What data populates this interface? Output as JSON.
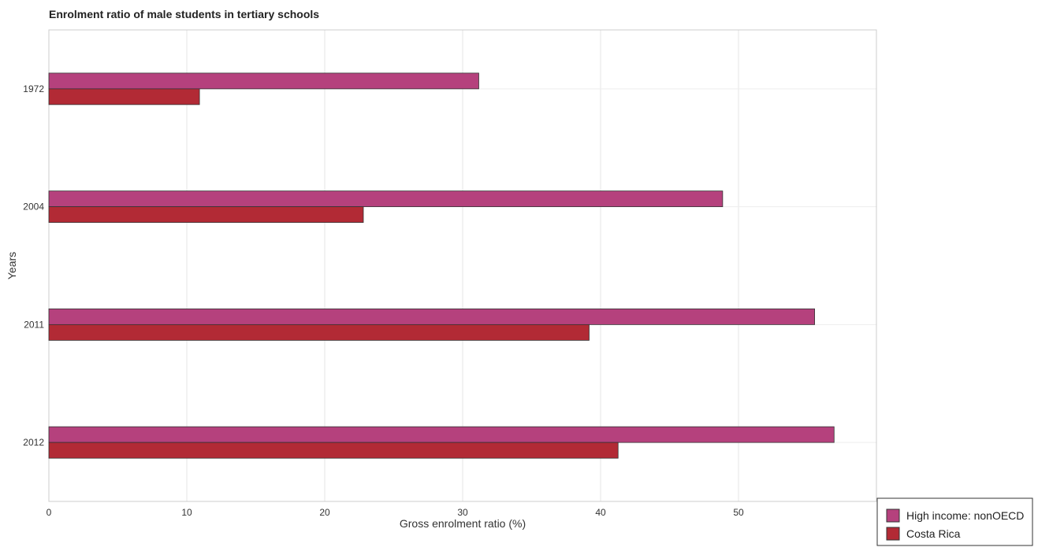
{
  "chart_data": {
    "type": "bar",
    "orientation": "horizontal",
    "title": "Enrolment ratio of male students in tertiary schools",
    "xlabel": "Gross enrolment ratio (%)",
    "ylabel": "Years",
    "categories": [
      "1972",
      "2004",
      "2011",
      "2012"
    ],
    "xlim": [
      0,
      60
    ],
    "xticks": [
      0,
      10,
      20,
      30,
      40,
      50
    ],
    "grid": true,
    "legend_position": "bottom-right",
    "series": [
      {
        "name": "High income: nonOECD",
        "color": "#b5417d",
        "values": [
          31.17,
          48.85,
          55.52,
          56.93
        ]
      },
      {
        "name": "Costa Rica",
        "color": "#b22a35",
        "values": [
          10.92,
          22.8,
          39.17,
          41.27
        ]
      }
    ]
  }
}
